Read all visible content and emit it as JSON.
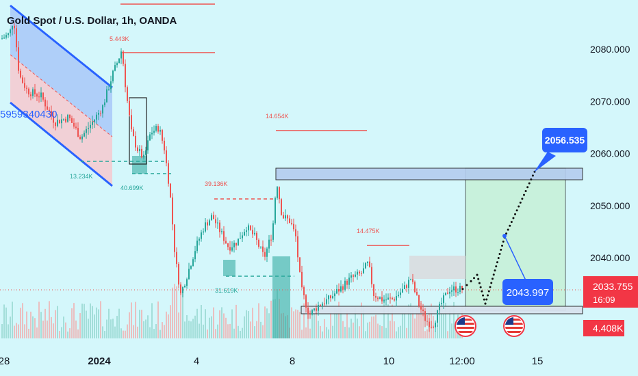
{
  "header": {
    "title": "Gold Spot / U.S. Dollar, 1h, OANDA"
  },
  "colors": {
    "background": "#d4f7fb",
    "up": "#26a69a",
    "down": "#ef5350",
    "accent": "#2962ff"
  },
  "icons": [
    "us-flag-icon",
    "us-flag-icon"
  ],
  "chart_data": {
    "type": "candlestick",
    "title": "Gold Spot / U.S. Dollar, 1h, OANDA",
    "ylim": [
      2026,
      2090
    ],
    "y_ticks": [
      "2080.000",
      "2070.000",
      "2060.000",
      "2050.000",
      "2040.000"
    ],
    "x_ticks": [
      "28",
      "2024",
      "4",
      "8",
      "10",
      "12:00",
      "15"
    ],
    "price_label": {
      "value": "2033.755",
      "countdown": "16:09"
    },
    "volume_label": "4.408K",
    "annotations": {
      "left_channel_text": "5959340430",
      "volume_markers": [
        "5.443K",
        "14.654K",
        "39.136K",
        "14.475K",
        "13.234K",
        "40.699K",
        "31.619K"
      ],
      "targets": [
        "2056.535",
        "2043.997"
      ]
    },
    "zones": [
      {
        "kind": "resistance",
        "from": 2055.2,
        "to": 2057.2
      },
      {
        "kind": "support",
        "from": 2030.5,
        "to": 2032.0
      }
    ],
    "projection": [
      2035.5,
      2036.7,
      2031.2,
      2043.9,
      2056.5
    ]
  }
}
